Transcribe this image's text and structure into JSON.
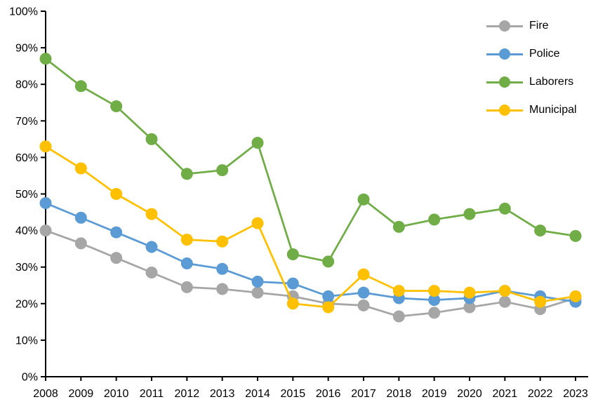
{
  "chart_data": {
    "type": "line",
    "categories": [
      "2008",
      "2009",
      "2010",
      "2011",
      "2012",
      "2013",
      "2014",
      "2015",
      "2016",
      "2017",
      "2018",
      "2019",
      "2020",
      "2021",
      "2022",
      "2023"
    ],
    "series": [
      {
        "name": "Fire",
        "color": "#A6A6A6",
        "values": [
          40,
          36.5,
          32.5,
          28.5,
          24.5,
          24,
          23,
          22,
          20,
          19.5,
          16.5,
          17.5,
          19,
          20.5,
          18.5,
          21.5
        ]
      },
      {
        "name": "Police",
        "color": "#5B9BD5",
        "values": [
          47.5,
          43.5,
          39.5,
          35.5,
          31,
          29.5,
          26,
          25.5,
          22,
          23,
          21.5,
          21,
          21.5,
          23.5,
          22,
          20.5
        ]
      },
      {
        "name": "Laborers",
        "color": "#70AD47",
        "values": [
          87,
          79.5,
          74,
          65,
          55.5,
          56.5,
          64,
          33.5,
          31.5,
          48.5,
          41,
          43,
          44.5,
          46,
          40,
          38.5
        ]
      },
      {
        "name": "Municipal",
        "color": "#FFC000",
        "values": [
          63,
          57,
          50,
          44.5,
          37.5,
          37,
          42,
          20,
          19,
          28,
          23.5,
          23.5,
          23,
          23.5,
          20.5,
          22
        ]
      }
    ],
    "xlabel": "",
    "ylabel": "",
    "ylim": [
      0,
      100
    ],
    "ytick_step": 10,
    "ytick_suffix": "%",
    "grid": false,
    "legend_position": "top-right",
    "axis_color": "#000000",
    "background": "#FFFFFF"
  }
}
